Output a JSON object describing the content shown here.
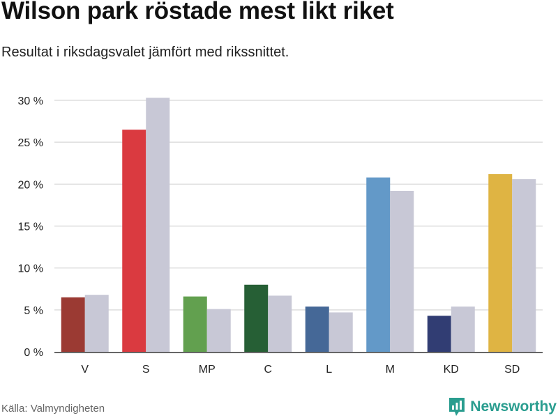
{
  "title": "Wilson park röstade mest likt riket",
  "subtitle": "Resultat i riksdagsvalet jämfört med rikssnittet.",
  "source": "Källa: Valmyndigheten",
  "brand": "Newsworthy",
  "colors": {
    "national": "#c8c8d6",
    "grid": "#dddddd",
    "axis": "#333333",
    "brand": "#2a9d8f"
  },
  "chart_data": {
    "type": "bar",
    "title": "Wilson park röstade mest likt riket",
    "categories": [
      "V",
      "S",
      "MP",
      "C",
      "L",
      "M",
      "KD",
      "SD"
    ],
    "series": [
      {
        "values": [
          6.5,
          26.5,
          6.6,
          8.0,
          5.4,
          20.8,
          4.3,
          21.2
        ],
        "colors": [
          "#9b3a33",
          "#da3a40",
          "#62a04f",
          "#265f35",
          "#456897",
          "#6399c8",
          "#313d73",
          "#dfb443"
        ]
      },
      {
        "values": [
          6.8,
          30.3,
          5.1,
          6.7,
          4.7,
          19.2,
          5.4,
          20.6
        ]
      }
    ],
    "yticks": [
      0,
      5,
      10,
      15,
      20,
      25,
      30
    ],
    "ytick_labels": [
      "0 %",
      "5 %",
      "10 %",
      "15 %",
      "20 %",
      "25 %",
      "30 %"
    ],
    "ylim": [
      0,
      30
    ],
    "grid": true
  }
}
